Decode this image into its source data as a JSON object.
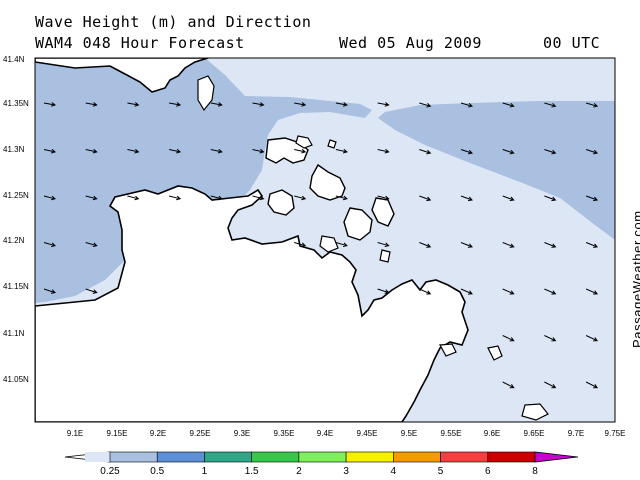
{
  "header": {
    "title": "Wave Height (m) and Direction",
    "subtitle": "WAM4 048 Hour Forecast",
    "date": "Wed 05 Aug 2009",
    "time": "00 UTC"
  },
  "map": {
    "lat_labels": [
      "41.4N",
      "41.35N",
      "41.3N",
      "41.25N",
      "41.2N",
      "41.15N",
      "41.1N",
      "41.05N"
    ],
    "lon_labels": [
      "9.1E",
      "9.15E",
      "9.2E",
      "9.25E",
      "9.3E",
      "9.35E",
      "9.4E",
      "9.45E",
      "9.5E",
      "9.55E",
      "9.6E",
      "9.65E",
      "9.7E",
      "9.75E"
    ],
    "wave_direction_arrows": "east-southeast",
    "colors": {
      "sea_low": "#dde6f5",
      "sea_mid": "#a9c0e1",
      "land": "#ffffff",
      "coast": "#000000"
    }
  },
  "legend": {
    "labels": [
      "0.25",
      "0.5",
      "1",
      "1.5",
      "2",
      "3",
      "4",
      "5",
      "6",
      "8"
    ],
    "colors": [
      "#dde6f5",
      "#a9c0e1",
      "#5c8fd6",
      "#2da886",
      "#35c84b",
      "#7ef05a",
      "#f5f000",
      "#f59a00",
      "#f24040",
      "#c80000",
      "#cc00cc"
    ]
  },
  "credit": "PassageWeather.com"
}
